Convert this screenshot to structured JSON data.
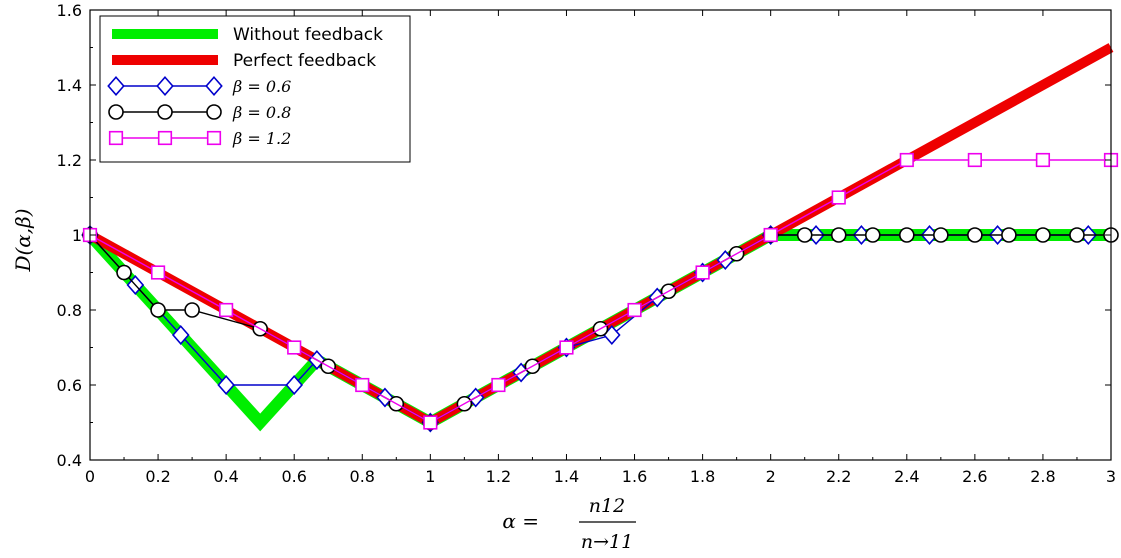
{
  "chart_data": {
    "type": "line",
    "xlim": [
      0,
      3
    ],
    "ylim": [
      0.4,
      1.6
    ],
    "xticks": [
      "0",
      "0.2",
      "0.4",
      "0.6",
      "0.8",
      "1",
      "1.2",
      "1.4",
      "1.6",
      "1.8",
      "2",
      "2.2",
      "2.4",
      "2.6",
      "2.8",
      "3"
    ],
    "yticks": [
      "0.4",
      "0.6",
      "0.8",
      "1",
      "1.2",
      "1.4",
      "1.6"
    ],
    "ylabel": "D(α,β)",
    "xlabel": {
      "prefix": "α =",
      "numerator": "n12",
      "denominator": "n→11"
    },
    "legend_position": "top-left",
    "grid": false,
    "series": [
      {
        "name": "Without feedback",
        "color": "#00ee00",
        "style": "thick-line",
        "x": [
          0,
          0.5,
          0.6667,
          1,
          2,
          3
        ],
        "y": [
          1,
          0.5,
          0.6667,
          0.5,
          1,
          1
        ]
      },
      {
        "name": "Perfect feedback",
        "color": "#ee0000",
        "style": "thick-line",
        "x": [
          0,
          1,
          3
        ],
        "y": [
          1,
          0.5,
          1.5
        ]
      },
      {
        "name": "β = 0.6",
        "color": "#0000cc",
        "marker": "diamond",
        "x": [
          0,
          0.1333,
          0.2667,
          0.4,
          0.6,
          0.6667,
          0.8667,
          1,
          1.1333,
          1.2667,
          1.4,
          1.5333,
          1.6667,
          1.8,
          1.8667,
          2,
          2.1333,
          2.2667,
          2.4667,
          2.6667,
          2.9333
        ],
        "y": [
          1,
          0.8667,
          0.7333,
          0.6,
          0.6,
          0.6667,
          0.5667,
          0.5,
          0.5667,
          0.6333,
          0.7,
          0.7333,
          0.8333,
          0.9,
          0.9333,
          1,
          1,
          1,
          1,
          1,
          1
        ]
      },
      {
        "name": "β = 0.8",
        "color": "#000000",
        "marker": "circle",
        "x": [
          0,
          0.1,
          0.2,
          0.3,
          0.5,
          0.7,
          0.9,
          1,
          1.1,
          1.3,
          1.5,
          1.7,
          1.9,
          2,
          2.1,
          2.2,
          2.3,
          2.4,
          2.5,
          2.6,
          2.7,
          2.8,
          2.9,
          3
        ],
        "y": [
          1,
          0.9,
          0.8,
          0.8,
          0.75,
          0.65,
          0.55,
          0.5,
          0.55,
          0.65,
          0.75,
          0.85,
          0.95,
          1,
          1,
          1,
          1,
          1,
          1,
          1,
          1,
          1,
          1,
          1
        ]
      },
      {
        "name": "β = 1.2",
        "color": "#ee00ee",
        "marker": "square",
        "x": [
          0,
          0.2,
          0.4,
          0.6,
          0.8,
          1,
          1.2,
          1.4,
          1.6,
          1.8,
          2,
          2.2,
          2.4,
          2.6,
          2.8,
          3
        ],
        "y": [
          1,
          0.9,
          0.8,
          0.7,
          0.6,
          0.5,
          0.6,
          0.7,
          0.8,
          0.9,
          1,
          1.1,
          1.2,
          1.2,
          1.2,
          1.2
        ]
      }
    ]
  }
}
